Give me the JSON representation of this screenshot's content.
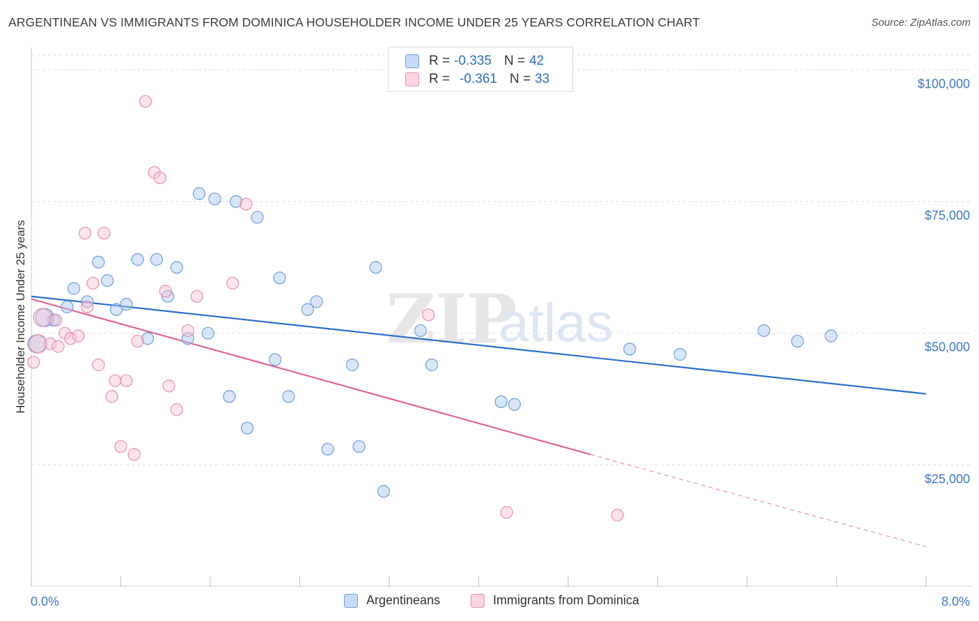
{
  "title": "ARGENTINEAN VS IMMIGRANTS FROM DOMINICA HOUSEHOLDER INCOME UNDER 25 YEARS CORRELATION CHART",
  "source": "Source: ZipAtlas.com",
  "watermark": {
    "zip": "ZIP",
    "atlas": "atlas"
  },
  "legend": {
    "rows": [
      {
        "r_label": "R =",
        "r_value": "-0.335",
        "n_label": "N =",
        "n_value": "42",
        "color": "#a9c8f0",
        "border": "#6d9ee0"
      },
      {
        "r_label": "R =",
        "r_value": "-0.361",
        "n_label": "N =",
        "n_value": "33",
        "color": "#f7c3d3",
        "border": "#e98fac"
      }
    ]
  },
  "bottom_legend": [
    "Argentineans",
    "Immigrants from Dominica"
  ],
  "chart_data": {
    "type": "scatter",
    "title": "ARGENTINEAN VS IMMIGRANTS FROM DOMINICA HOUSEHOLDER INCOME UNDER 25 YEARS CORRELATION CHART",
    "xlabel": "",
    "ylabel": "Householder Income Under 25 years",
    "xlim": [
      0,
      8
    ],
    "ylim": [
      2000,
      104000
    ],
    "x_tick_labels": [
      "0.0%",
      "8.0%"
    ],
    "y_ticks": [
      25000,
      50000,
      75000,
      100000
    ],
    "y_tick_labels": [
      "$25,000",
      "$50,000",
      "$75,000",
      "$100,000"
    ],
    "grid": true,
    "series": [
      {
        "name": "Argentineans",
        "color": "#6d9ee0",
        "fill": "#a9c8f0",
        "line_color": "#2b6fd0",
        "trend": {
          "x": [
            0.0,
            8.0
          ],
          "y": [
            57000,
            38500
          ]
        },
        "points": [
          [
            0.05,
            48000
          ],
          [
            0.12,
            53000
          ],
          [
            0.2,
            52500
          ],
          [
            0.32,
            55000
          ],
          [
            0.38,
            58500
          ],
          [
            0.5,
            56000
          ],
          [
            0.6,
            63500
          ],
          [
            0.68,
            60000
          ],
          [
            0.76,
            54500
          ],
          [
            0.85,
            55500
          ],
          [
            0.95,
            64000
          ],
          [
            1.04,
            49000
          ],
          [
            1.12,
            64000
          ],
          [
            1.22,
            57000
          ],
          [
            1.3,
            62500
          ],
          [
            1.4,
            49000
          ],
          [
            1.5,
            76500
          ],
          [
            1.64,
            75500
          ],
          [
            1.58,
            50000
          ],
          [
            1.83,
            75000
          ],
          [
            1.77,
            38000
          ],
          [
            1.93,
            32000
          ],
          [
            2.02,
            72000
          ],
          [
            2.18,
            45000
          ],
          [
            2.22,
            60500
          ],
          [
            2.3,
            38000
          ],
          [
            2.47,
            54500
          ],
          [
            2.55,
            56000
          ],
          [
            2.65,
            28000
          ],
          [
            2.87,
            44000
          ],
          [
            2.93,
            28500
          ],
          [
            3.08,
            62500
          ],
          [
            3.15,
            20000
          ],
          [
            3.48,
            50500
          ],
          [
            3.58,
            44000
          ],
          [
            4.2,
            37000
          ],
          [
            4.32,
            36500
          ],
          [
            5.35,
            47000
          ],
          [
            5.8,
            46000
          ],
          [
            6.55,
            50500
          ],
          [
            6.85,
            48500
          ],
          [
            7.15,
            49500
          ]
        ]
      },
      {
        "name": "Immigrants from Dominica",
        "color": "#e98fac",
        "fill": "#f7c3d3",
        "line_color": "#e06592",
        "trend": {
          "x": [
            0.0,
            5.0
          ],
          "y": [
            56500,
            27000
          ]
        },
        "trend_ext": {
          "x": [
            5.0,
            8.0
          ],
          "y": [
            27000,
            9500
          ]
        },
        "points": [
          [
            0.02,
            44500
          ],
          [
            0.06,
            48000
          ],
          [
            0.1,
            53000
          ],
          [
            0.17,
            48000
          ],
          [
            0.24,
            47500
          ],
          [
            0.22,
            52500
          ],
          [
            0.3,
            50000
          ],
          [
            0.35,
            49000
          ],
          [
            0.42,
            49500
          ],
          [
            0.48,
            69000
          ],
          [
            0.5,
            55000
          ],
          [
            0.55,
            59500
          ],
          [
            0.6,
            44000
          ],
          [
            0.65,
            69000
          ],
          [
            0.72,
            38000
          ],
          [
            0.75,
            41000
          ],
          [
            0.8,
            28500
          ],
          [
            0.85,
            41000
          ],
          [
            0.92,
            27000
          ],
          [
            0.95,
            48500
          ],
          [
            1.02,
            94000
          ],
          [
            1.1,
            80500
          ],
          [
            1.15,
            79500
          ],
          [
            1.2,
            58000
          ],
          [
            1.23,
            40000
          ],
          [
            1.3,
            35500
          ],
          [
            1.4,
            50500
          ],
          [
            1.48,
            57000
          ],
          [
            1.8,
            59500
          ],
          [
            1.92,
            74500
          ],
          [
            3.55,
            53500
          ],
          [
            4.25,
            16000
          ],
          [
            5.24,
            15500
          ]
        ]
      }
    ]
  }
}
